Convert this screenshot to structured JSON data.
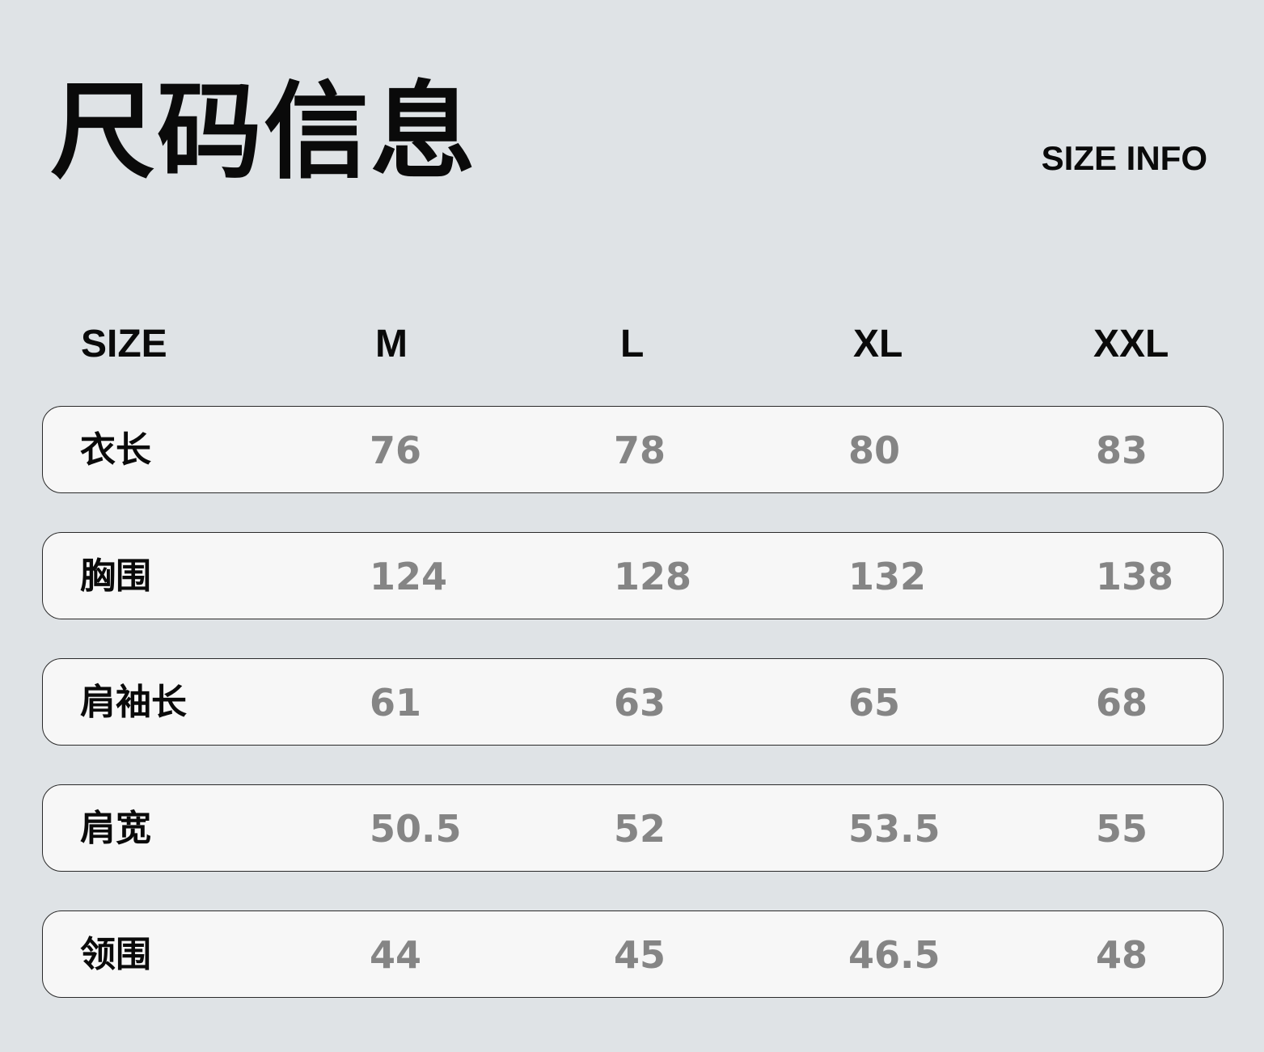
{
  "title": "尺码信息",
  "subtitle": "SIZE INFO",
  "header": [
    "SIZE",
    "M",
    "L",
    "XL",
    "XXL"
  ],
  "rows": [
    {
      "label": "衣长",
      "values": [
        "76",
        "78",
        "80",
        "83"
      ]
    },
    {
      "label": "胸围",
      "values": [
        "124",
        "128",
        "132",
        "138"
      ]
    },
    {
      "label": "肩袖长",
      "values": [
        "61",
        "63",
        "65",
        "68"
      ]
    },
    {
      "label": "肩宽",
      "values": [
        "50.5",
        "52",
        "53.5",
        "55"
      ]
    },
    {
      "label": "领围",
      "values": [
        "44",
        "45",
        "46.5",
        "48"
      ]
    }
  ]
}
